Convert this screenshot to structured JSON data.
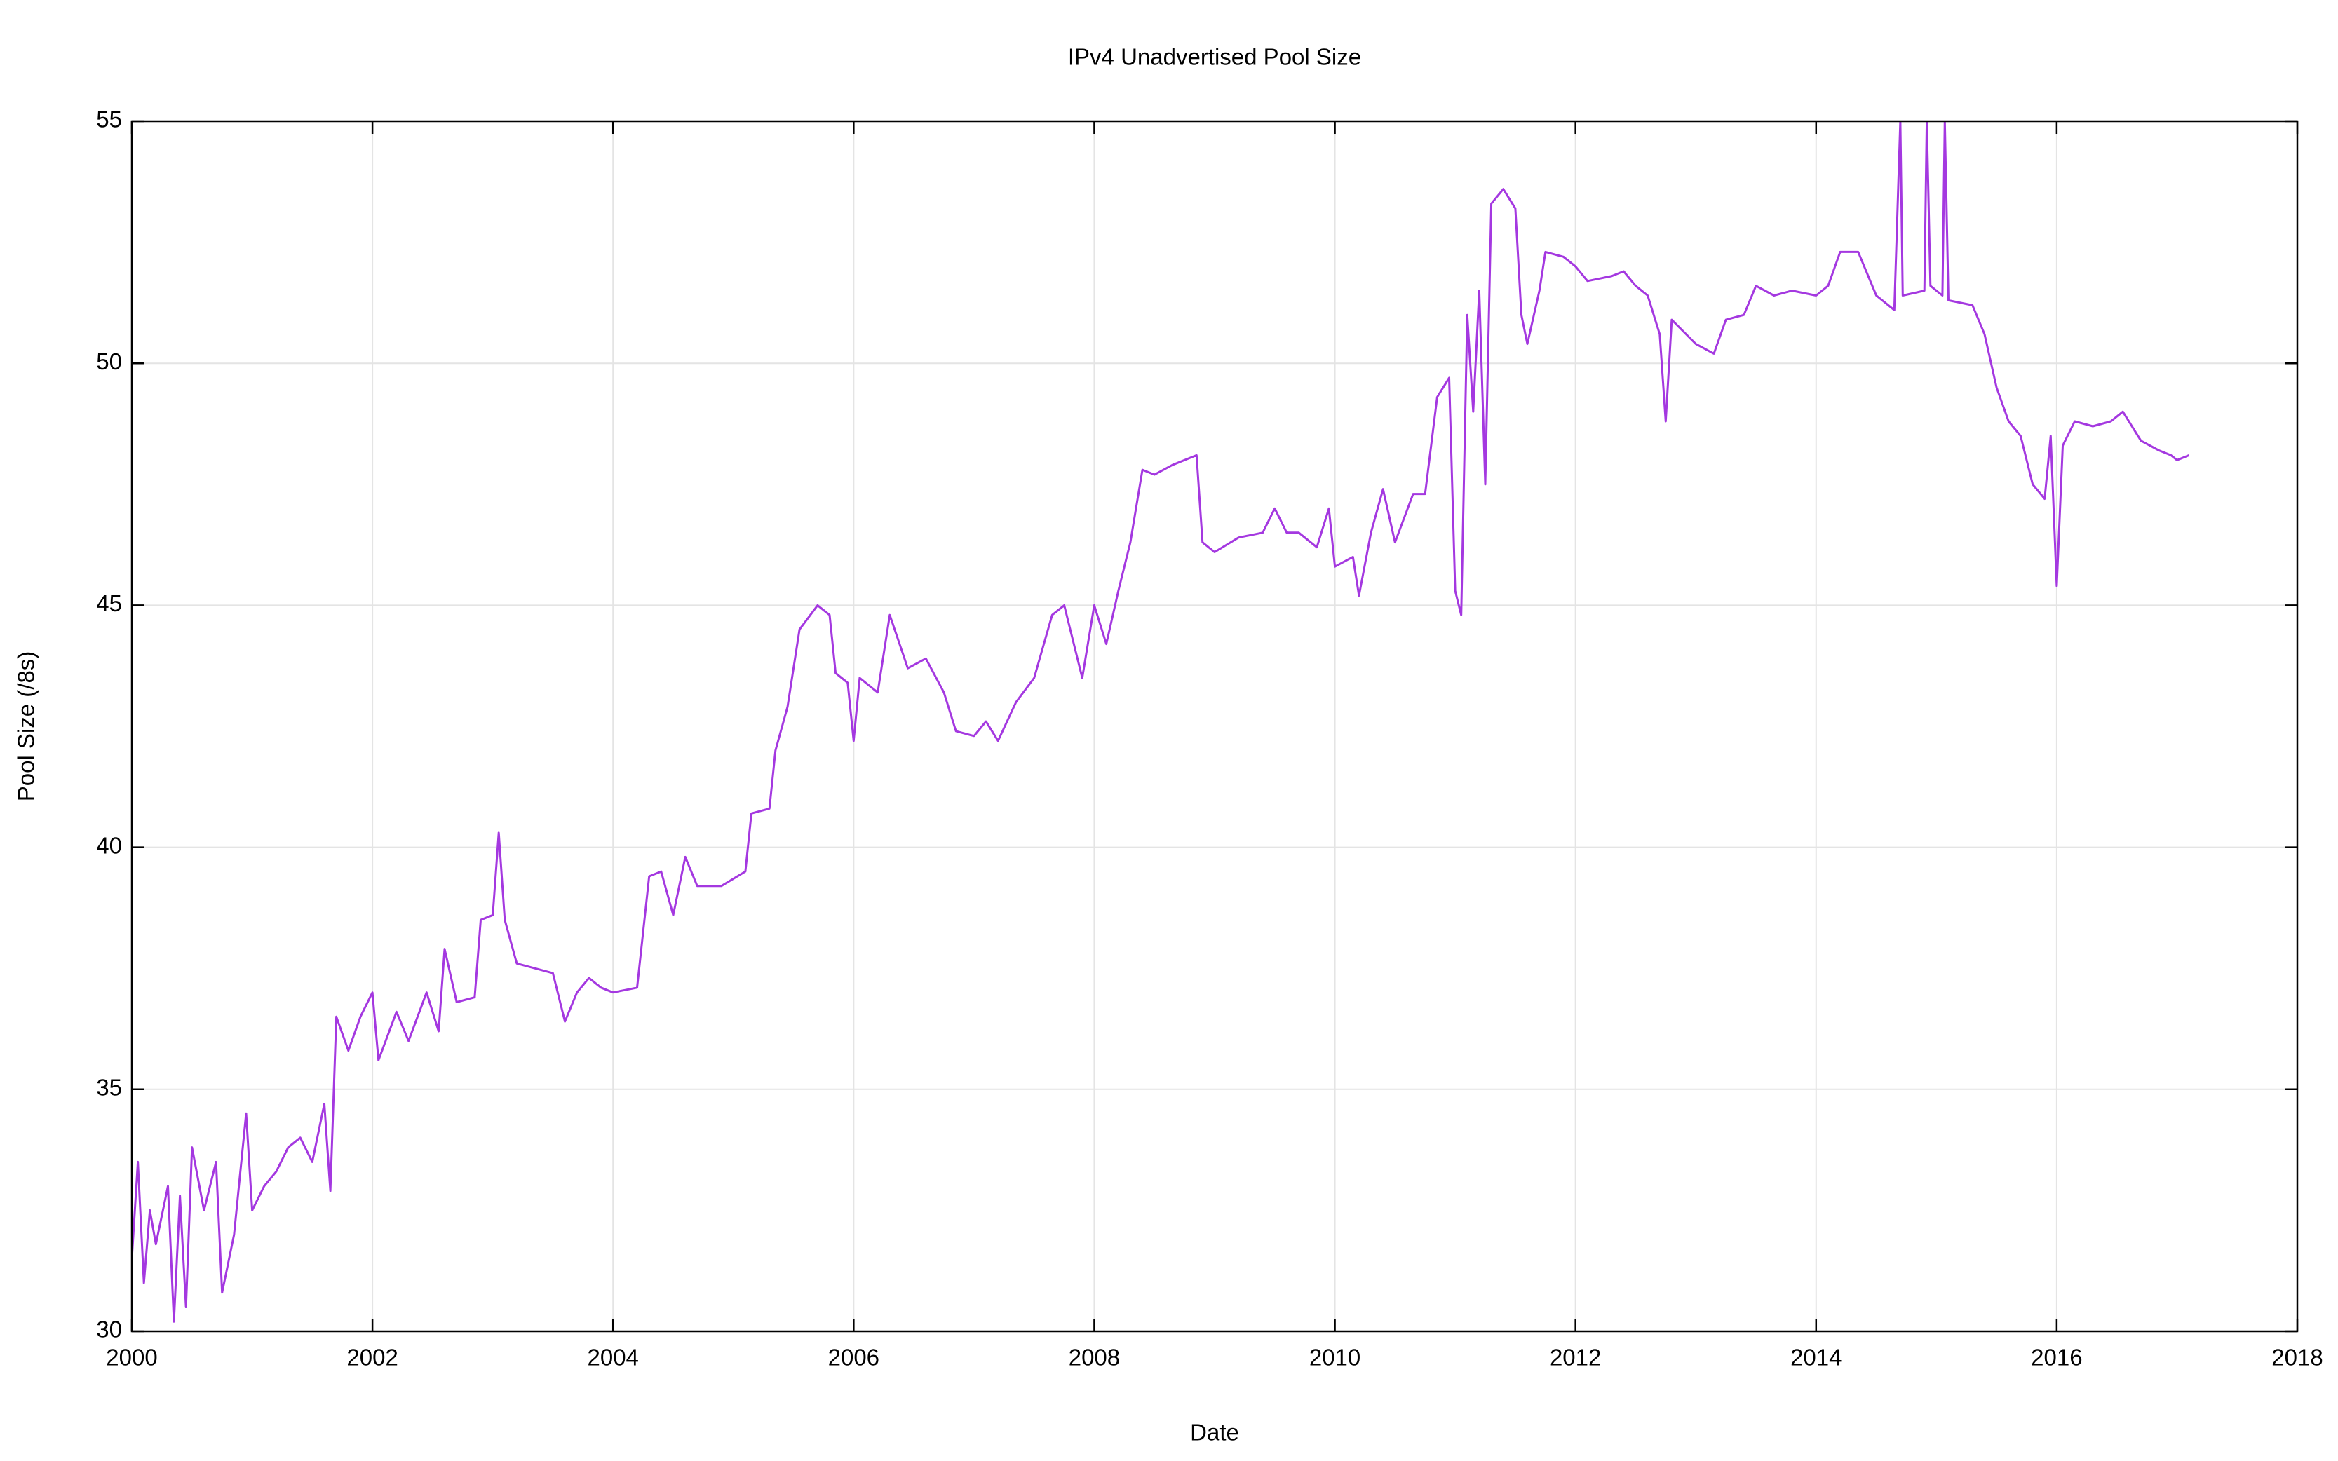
{
  "chart_data": {
    "type": "line",
    "title": "IPv4 Unadvertised Pool Size",
    "xlabel": "Date",
    "ylabel": "Pool Size (/8s)",
    "xlim": [
      2000,
      2018
    ],
    "ylim": [
      30,
      55
    ],
    "xticks": [
      2000,
      2002,
      2004,
      2006,
      2008,
      2010,
      2012,
      2014,
      2016,
      2018
    ],
    "yticks": [
      30,
      35,
      40,
      45,
      50,
      55
    ],
    "grid": true,
    "series": [
      {
        "color": "#a438e0",
        "x": [
          2000.0,
          2000.05,
          2000.1,
          2000.15,
          2000.2,
          2000.3,
          2000.35,
          2000.4,
          2000.45,
          2000.5,
          2000.6,
          2000.7,
          2000.75,
          2000.85,
          2000.95,
          2001.0,
          2001.1,
          2001.2,
          2001.3,
          2001.4,
          2001.5,
          2001.6,
          2001.65,
          2001.7,
          2001.8,
          2001.9,
          2002.0,
          2002.05,
          2002.2,
          2002.3,
          2002.45,
          2002.55,
          2002.6,
          2002.7,
          2002.85,
          2002.9,
          2003.0,
          2003.05,
          2003.1,
          2003.2,
          2003.35,
          2003.5,
          2003.6,
          2003.7,
          2003.8,
          2003.9,
          2004.0,
          2004.2,
          2004.3,
          2004.4,
          2004.5,
          2004.6,
          2004.7,
          2004.9,
          2005.1,
          2005.15,
          2005.3,
          2005.35,
          2005.45,
          2005.55,
          2005.7,
          2005.8,
          2005.85,
          2005.95,
          2006.0,
          2006.05,
          2006.2,
          2006.3,
          2006.45,
          2006.6,
          2006.75,
          2006.85,
          2007.0,
          2007.1,
          2007.2,
          2007.35,
          2007.5,
          2007.65,
          2007.75,
          2007.9,
          2008.0,
          2008.1,
          2008.2,
          2008.3,
          2008.4,
          2008.5,
          2008.65,
          2008.85,
          2008.9,
          2009.0,
          2009.2,
          2009.4,
          2009.5,
          2009.6,
          2009.7,
          2009.85,
          2009.95,
          2010.0,
          2010.15,
          2010.2,
          2010.3,
          2010.4,
          2010.5,
          2010.65,
          2010.75,
          2010.85,
          2010.95,
          2011.0,
          2011.05,
          2011.1,
          2011.15,
          2011.2,
          2011.25,
          2011.3,
          2011.4,
          2011.5,
          2011.55,
          2011.6,
          2011.7,
          2011.75,
          2011.9,
          2012.0,
          2012.1,
          2012.3,
          2012.4,
          2012.5,
          2012.6,
          2012.7,
          2012.75,
          2012.8,
          2013.0,
          2013.15,
          2013.25,
          2013.4,
          2013.5,
          2013.65,
          2013.8,
          2014.0,
          2014.1,
          2014.2,
          2014.35,
          2014.5,
          2014.65,
          2014.7,
          2014.72,
          2014.9,
          2014.92,
          2014.95,
          2015.05,
          2015.07,
          2015.1,
          2015.3,
          2015.4,
          2015.5,
          2015.6,
          2015.7,
          2015.8,
          2015.9,
          2015.95,
          2016.0,
          2016.05,
          2016.15,
          2016.3,
          2016.45,
          2016.55,
          2016.7,
          2016.85,
          2016.95,
          2017.0,
          2017.1
        ],
        "values": [
          31.5,
          33.5,
          31,
          32.5,
          31.8,
          33,
          30.2,
          32.8,
          30.5,
          33.8,
          32.5,
          33.5,
          30.8,
          32,
          34.5,
          32.5,
          33,
          33.3,
          33.8,
          34,
          33.5,
          34.7,
          32.9,
          36.5,
          35.8,
          36.5,
          37,
          35.6,
          36.6,
          36,
          37,
          36.2,
          37.9,
          36.8,
          36.9,
          38.5,
          38.6,
          40.3,
          38.5,
          37.6,
          37.5,
          37.4,
          36.4,
          37,
          37.3,
          37.1,
          37,
          37.1,
          39.4,
          39.5,
          38.6,
          39.8,
          39.2,
          39.2,
          39.5,
          40.7,
          40.8,
          42,
          42.9,
          44.5,
          45,
          44.8,
          43.6,
          43.4,
          42.2,
          43.5,
          43.2,
          44.8,
          43.7,
          43.9,
          43.2,
          42.4,
          42.3,
          42.6,
          42.2,
          43,
          43.5,
          44.8,
          45,
          43.5,
          45,
          44.2,
          45.3,
          46.3,
          47.8,
          47.7,
          47.9,
          48.1,
          46.3,
          46.1,
          46.4,
          46.5,
          47,
          46.5,
          46.5,
          46.2,
          47,
          45.8,
          46,
          45.2,
          46.5,
          47.4,
          46.3,
          47.3,
          47.3,
          49.3,
          49.7,
          45.3,
          44.8,
          51,
          49,
          51.5,
          47.5,
          53.3,
          53.6,
          53.2,
          51,
          50.4,
          51.5,
          52.3,
          52.2,
          52,
          51.7,
          51.8,
          51.9,
          51.6,
          51.4,
          50.6,
          48.8,
          50.9,
          50.4,
          50.2,
          50.9,
          51.0,
          51.6,
          51.4,
          51.5,
          51.4,
          51.6,
          52.3,
          52.3,
          51.4,
          51.1,
          55,
          51.4,
          51.5,
          55,
          51.6,
          51.4,
          55,
          51.3,
          51.2,
          50.6,
          49.5,
          48.8,
          48.5,
          47.5,
          47.2,
          48.5,
          45.4,
          48.3,
          48.8,
          48.7,
          48.8,
          49.0,
          48.4,
          48.2,
          48.1,
          48.0,
          48.1
        ]
      }
    ]
  }
}
